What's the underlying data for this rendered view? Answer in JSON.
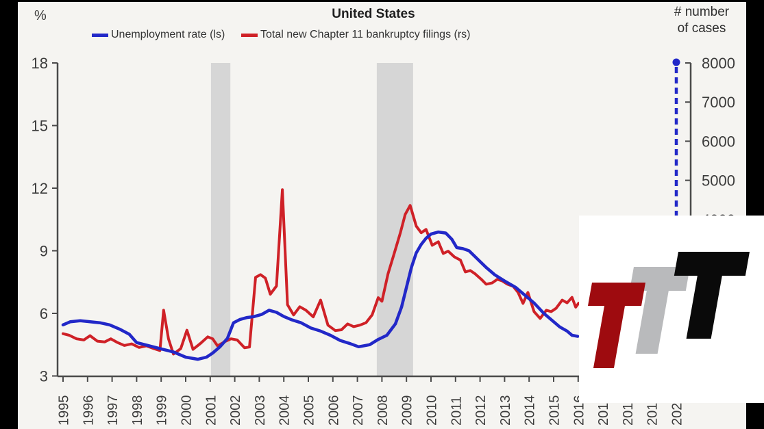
{
  "header": {
    "left_unit": "%",
    "title": "United States",
    "right_unit_line1": "# number",
    "right_unit_line2": "of cases"
  },
  "legend": [
    {
      "label": "Unemployment rate (ls)",
      "color": "#2228c8"
    },
    {
      "label": "Total new Chapter 11 bankruptcy filings (rs)",
      "color": "#cf2127"
    }
  ],
  "chart_data": {
    "type": "line",
    "title": "United States",
    "xlabel": "",
    "ylabel_left": "%",
    "ylabel_right": "# number of cases",
    "x_axis": {
      "labels": [
        "1995",
        "1996",
        "1997",
        "1998",
        "1999",
        "2000",
        "2001",
        "2002",
        "2003",
        "2004",
        "2005",
        "2006",
        "2007",
        "2008",
        "2009",
        "2010",
        "2011",
        "2012",
        "2013",
        "2014",
        "2015",
        "2016",
        "2017",
        "2018",
        "2019",
        "2020"
      ],
      "range": [
        1994.8,
        2020.6
      ]
    },
    "y_left": {
      "ticks": [
        18,
        15,
        12,
        9,
        6,
        3
      ],
      "range": [
        3,
        18
      ],
      "grid": false
    },
    "y_right": {
      "ticks": [
        8000,
        7000,
        6000,
        5000,
        4000
      ],
      "range": [
        0,
        8000
      ]
    },
    "recession_bands": [
      [
        2001.03,
        2001.82
      ],
      [
        2007.79,
        2009.27
      ]
    ],
    "series": [
      {
        "name": "Unemployment rate (ls)",
        "axis": "left",
        "color": "#2228c8",
        "points": [
          [
            1995.0,
            5.45
          ],
          [
            1995.3,
            5.6
          ],
          [
            1995.7,
            5.65
          ],
          [
            1996.1,
            5.6
          ],
          [
            1996.5,
            5.55
          ],
          [
            1996.9,
            5.45
          ],
          [
            1997.3,
            5.25
          ],
          [
            1997.7,
            5.0
          ],
          [
            1998.0,
            4.6
          ],
          [
            1998.5,
            4.45
          ],
          [
            1999.0,
            4.3
          ],
          [
            1999.5,
            4.15
          ],
          [
            2000.0,
            3.9
          ],
          [
            2000.5,
            3.8
          ],
          [
            2000.85,
            3.9
          ],
          [
            2001.1,
            4.1
          ],
          [
            2001.4,
            4.4
          ],
          [
            2001.7,
            4.8
          ],
          [
            2001.95,
            5.55
          ],
          [
            2002.2,
            5.7
          ],
          [
            2002.5,
            5.8
          ],
          [
            2002.8,
            5.85
          ],
          [
            2003.1,
            5.95
          ],
          [
            2003.4,
            6.15
          ],
          [
            2003.7,
            6.05
          ],
          [
            2004.0,
            5.85
          ],
          [
            2004.3,
            5.7
          ],
          [
            2004.7,
            5.55
          ],
          [
            2005.1,
            5.3
          ],
          [
            2005.5,
            5.15
          ],
          [
            2005.9,
            4.95
          ],
          [
            2006.3,
            4.7
          ],
          [
            2006.7,
            4.55
          ],
          [
            2007.05,
            4.4
          ],
          [
            2007.5,
            4.5
          ],
          [
            2007.85,
            4.75
          ],
          [
            2008.2,
            4.95
          ],
          [
            2008.55,
            5.5
          ],
          [
            2008.8,
            6.3
          ],
          [
            2009.0,
            7.25
          ],
          [
            2009.2,
            8.2
          ],
          [
            2009.4,
            8.9
          ],
          [
            2009.6,
            9.3
          ],
          [
            2009.8,
            9.6
          ],
          [
            2010.0,
            9.8
          ],
          [
            2010.3,
            9.9
          ],
          [
            2010.6,
            9.85
          ],
          [
            2010.85,
            9.55
          ],
          [
            2011.05,
            9.15
          ],
          [
            2011.3,
            9.1
          ],
          [
            2011.55,
            9.0
          ],
          [
            2011.9,
            8.6
          ],
          [
            2012.25,
            8.2
          ],
          [
            2012.6,
            7.85
          ],
          [
            2013.0,
            7.55
          ],
          [
            2013.45,
            7.25
          ],
          [
            2013.85,
            6.85
          ],
          [
            2014.2,
            6.5
          ],
          [
            2014.6,
            6.0
          ],
          [
            2015.0,
            5.6
          ],
          [
            2015.25,
            5.35
          ],
          [
            2015.55,
            5.15
          ],
          [
            2015.75,
            4.95
          ],
          [
            2015.98,
            4.9
          ]
        ]
      },
      {
        "name": "Total new Chapter 11 bankruptcy filings (rs)",
        "axis": "right",
        "color": "#cf2127",
        "points": [
          [
            1995.0,
            1080
          ],
          [
            1995.25,
            1040
          ],
          [
            1995.55,
            950
          ],
          [
            1995.85,
            920
          ],
          [
            1996.1,
            1030
          ],
          [
            1996.4,
            890
          ],
          [
            1996.7,
            870
          ],
          [
            1996.95,
            950
          ],
          [
            1997.2,
            860
          ],
          [
            1997.5,
            780
          ],
          [
            1997.8,
            820
          ],
          [
            1998.1,
            730
          ],
          [
            1998.4,
            770
          ],
          [
            1998.7,
            700
          ],
          [
            1998.95,
            650
          ],
          [
            1999.1,
            1680
          ],
          [
            1999.3,
            950
          ],
          [
            1999.5,
            560
          ],
          [
            1999.8,
            700
          ],
          [
            2000.05,
            1170
          ],
          [
            2000.3,
            680
          ],
          [
            2000.6,
            830
          ],
          [
            2000.9,
            1000
          ],
          [
            2001.1,
            950
          ],
          [
            2001.3,
            770
          ],
          [
            2001.6,
            880
          ],
          [
            2001.85,
            950
          ],
          [
            2002.1,
            920
          ],
          [
            2002.4,
            720
          ],
          [
            2002.6,
            740
          ],
          [
            2002.85,
            2520
          ],
          [
            2003.05,
            2590
          ],
          [
            2003.25,
            2500
          ],
          [
            2003.45,
            2090
          ],
          [
            2003.7,
            2300
          ],
          [
            2003.94,
            4760
          ],
          [
            2004.15,
            1820
          ],
          [
            2004.4,
            1560
          ],
          [
            2004.65,
            1770
          ],
          [
            2004.9,
            1680
          ],
          [
            2005.2,
            1510
          ],
          [
            2005.5,
            1940
          ],
          [
            2005.8,
            1300
          ],
          [
            2006.1,
            1160
          ],
          [
            2006.35,
            1180
          ],
          [
            2006.6,
            1330
          ],
          [
            2006.85,
            1260
          ],
          [
            2007.1,
            1300
          ],
          [
            2007.35,
            1360
          ],
          [
            2007.6,
            1560
          ],
          [
            2007.85,
            2000
          ],
          [
            2008.0,
            1910
          ],
          [
            2008.25,
            2610
          ],
          [
            2008.5,
            3130
          ],
          [
            2008.75,
            3660
          ],
          [
            2008.95,
            4130
          ],
          [
            2009.15,
            4360
          ],
          [
            2009.4,
            3830
          ],
          [
            2009.6,
            3660
          ],
          [
            2009.8,
            3745
          ],
          [
            2010.05,
            3340
          ],
          [
            2010.3,
            3430
          ],
          [
            2010.5,
            3130
          ],
          [
            2010.7,
            3190
          ],
          [
            2010.95,
            3045
          ],
          [
            2011.2,
            2960
          ],
          [
            2011.4,
            2660
          ],
          [
            2011.6,
            2695
          ],
          [
            2011.8,
            2610
          ],
          [
            2012.05,
            2470
          ],
          [
            2012.25,
            2345
          ],
          [
            2012.5,
            2380
          ],
          [
            2012.7,
            2470
          ],
          [
            2012.9,
            2430
          ],
          [
            2013.1,
            2350
          ],
          [
            2013.35,
            2290
          ],
          [
            2013.55,
            2135
          ],
          [
            2013.75,
            1855
          ],
          [
            2013.95,
            2135
          ],
          [
            2014.2,
            1645
          ],
          [
            2014.45,
            1470
          ],
          [
            2014.7,
            1680
          ],
          [
            2014.9,
            1645
          ],
          [
            2015.1,
            1730
          ],
          [
            2015.35,
            1940
          ],
          [
            2015.55,
            1870
          ],
          [
            2015.75,
            2010
          ],
          [
            2015.9,
            1760
          ],
          [
            2016.02,
            1860
          ]
        ]
      }
    ],
    "annotation": {
      "type": "dashed-vertical-marker",
      "x": 2020,
      "top_value": 8000,
      "color": "#2228c8",
      "note": "dashed blue vertical line with dot at top of right scale"
    },
    "legend_position": "top"
  },
  "watermark": {
    "letters": [
      {
        "glyph": "T",
        "color": "#9e0b0f"
      },
      {
        "glyph": "T",
        "color": "#b9babc"
      },
      {
        "glyph": "T",
        "color": "#0a0a0a"
      }
    ]
  }
}
